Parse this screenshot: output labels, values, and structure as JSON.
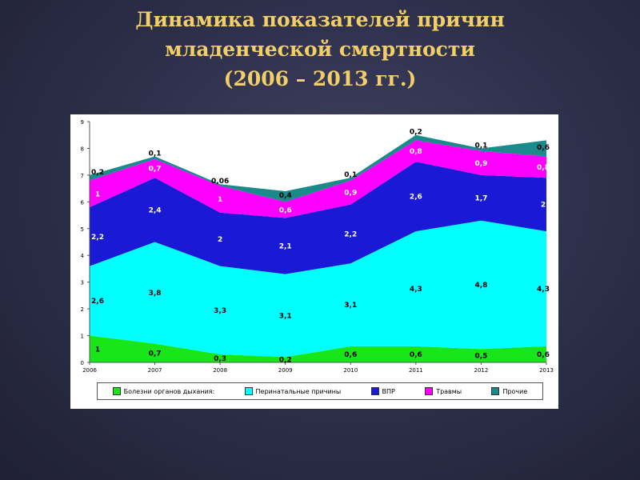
{
  "title": {
    "line1": "Динамика показателей причин",
    "line2": "младенческой смертности",
    "line3": "(2006 – 2013 гг.)"
  },
  "chart_data": {
    "type": "area",
    "stacked": true,
    "x": [
      "2006",
      "2007",
      "2008",
      "2009",
      "2010",
      "2011",
      "2012",
      "2013"
    ],
    "yticks": [
      "0",
      "1",
      "2",
      "3",
      "4",
      "5",
      "6",
      "7",
      "8",
      "9"
    ],
    "ylim": [
      0,
      9
    ],
    "series": [
      {
        "name": "Болезни органов дыхания",
        "color": "#19e619",
        "values": [
          1,
          0.7,
          0.3,
          0.2,
          0.6,
          0.6,
          0.5,
          0.6
        ],
        "labels": [
          "1",
          "0,7",
          "0,3",
          "0,2",
          "0,6",
          "0,6",
          "0,5",
          "0,6"
        ]
      },
      {
        "name": "Перинатальные причины",
        "color": "#00ffff",
        "values": [
          2.6,
          3.8,
          3.3,
          3.1,
          3.1,
          4.3,
          4.8,
          4.3
        ],
        "labels": [
          "2,6",
          "3,8",
          "3,3",
          "3,1",
          "3,1",
          "4,3",
          "4,8",
          "4,3"
        ]
      },
      {
        "name": "ВПР",
        "color": "#1a1ad6",
        "values": [
          2.2,
          2.4,
          2,
          2.1,
          2.2,
          2.6,
          1.7,
          2
        ],
        "labels": [
          "2,2",
          "2,4",
          "2",
          "2,1",
          "2,2",
          "2,6",
          "1,7",
          "2"
        ]
      },
      {
        "name": "Травмы",
        "color": "#ff00ff",
        "values": [
          1,
          0.7,
          1,
          0.6,
          0.9,
          0.8,
          0.9,
          0.8
        ],
        "labels": [
          "1",
          "0,7",
          "1",
          "0,6",
          "0,9",
          "0,8",
          "0,9",
          "0,8"
        ]
      },
      {
        "name": "Прочие",
        "color": "#1a8a8a",
        "values": [
          0.2,
          0.1,
          0.06,
          0.4,
          0.1,
          0.2,
          0.1,
          0.6
        ],
        "labels": [
          "0,2",
          "0,1",
          "0,06",
          "0,4",
          "0,1",
          "0,2",
          "0,1",
          "0,6"
        ]
      }
    ],
    "legend_position": "bottom"
  }
}
